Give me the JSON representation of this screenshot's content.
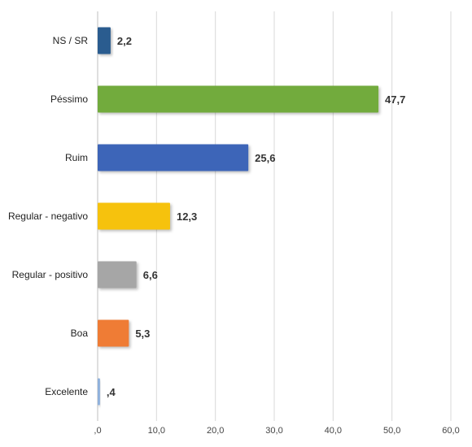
{
  "chart_data": {
    "type": "bar",
    "orientation": "horizontal",
    "title": "",
    "xlabel": "",
    "ylabel": "",
    "categories": [
      "NS / SR",
      "Péssimo",
      "Ruim",
      "Regular - negativo",
      "Regular - positivo",
      "Boa",
      "Excelente"
    ],
    "values": [
      2.2,
      47.7,
      25.6,
      12.3,
      6.6,
      5.3,
      0.4
    ],
    "value_labels": [
      "2,2",
      "47,7",
      "25,6",
      "12,3",
      "6,6",
      "5,3",
      ",4"
    ],
    "bar_colors": [
      "#2a5c8f",
      "#72ab3e",
      "#3c65b8",
      "#f6c20d",
      "#a6a6a6",
      "#ef7b34",
      "#8fb1dc"
    ],
    "xlim": [
      0,
      60
    ],
    "xticks": [
      0,
      10,
      20,
      30,
      40,
      50,
      60
    ],
    "xtick_labels": [
      ",0",
      "10,0",
      "20,0",
      "30,0",
      "40,0",
      "50,0",
      "60,0"
    ],
    "grid": true,
    "legend": "none"
  }
}
